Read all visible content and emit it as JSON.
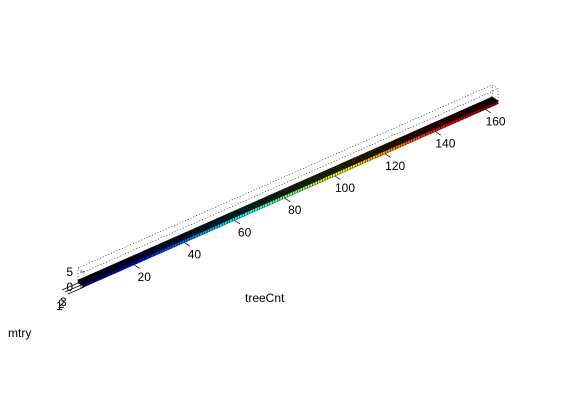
{
  "chart_data": {
    "type": "bar3",
    "title": "",
    "xlabel": "treeCnt",
    "ylabel": "mtry",
    "zlabel": "",
    "x_ticks": [
      "20",
      "40",
      "60",
      "80",
      "100",
      "120",
      "140",
      "160"
    ],
    "y_ticks": [
      "1",
      "2",
      "3"
    ],
    "z_ticks": [
      "0",
      "5"
    ],
    "xlim": [
      0,
      165
    ],
    "ylim": [
      1,
      3
    ],
    "zlim": [
      0,
      5
    ],
    "bar_count": 165,
    "bar_height": 1,
    "colormap": "jet",
    "grid": true
  }
}
